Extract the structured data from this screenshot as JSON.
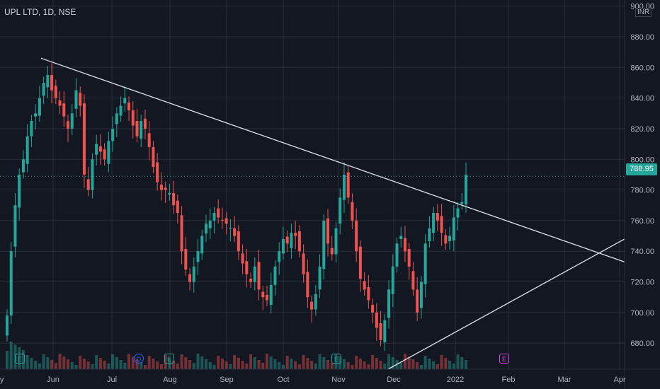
{
  "symbol": {
    "title": "UPL LTD, 1D, NSE"
  },
  "currency": "INR",
  "last_price": {
    "value": 788.95,
    "label": "788.95"
  },
  "colors": {
    "background": "#131722",
    "up": "#26a69a",
    "down": "#ef5350",
    "grid": "#2a2e39",
    "axis_text": "#b2b5be",
    "trendline": "#e0e3eb",
    "price_line": "#26a69a"
  },
  "events": [
    {
      "type": "E",
      "date": "May",
      "icon": "earnings-icon"
    },
    {
      "type": "D",
      "date": "Jul",
      "icon": "dividend-icon"
    },
    {
      "type": "E",
      "date": "Aug",
      "icon": "earnings-icon"
    },
    {
      "type": "E",
      "date": "Nov",
      "icon": "earnings-icon"
    },
    {
      "type": "E",
      "date": "Feb",
      "icon": "earnings-upcoming-icon"
    }
  ],
  "chart_data": {
    "type": "candlestick",
    "x_ticks": [
      "May",
      "Jun",
      "Jul",
      "Aug",
      "Sep",
      "Oct",
      "Nov",
      "Dec",
      "2022",
      "Feb",
      "Mar",
      "Apr"
    ],
    "y_ticks": [
      "680.00",
      "700.00",
      "720.00",
      "740.00",
      "760.00",
      "780.00",
      "800.00",
      "820.00",
      "840.00",
      "860.00",
      "880.00",
      "900.00"
    ],
    "ylim": [
      663,
      904
    ],
    "grid": true,
    "series_close": [
      [
        698,
        740,
        770,
        790,
        800,
        815,
        825,
        830,
        840,
        850,
        855,
        845,
        840,
        835,
        828,
        820,
        830,
        845,
        835,
        790,
        780,
        800,
        810,
        805,
        800,
        812,
        820,
        830,
        835,
        840,
        832,
        822,
        815,
        825,
        820,
        808,
        795,
        785,
        780,
        780,
        778,
        770,
        765,
        740,
        728,
        720,
        730,
        740,
        750,
        758,
        760,
        765,
        762,
        760,
        758,
        755,
        750,
        740,
        732,
        725,
        720,
        730,
        715,
        710,
        708,
        718,
        730,
        740,
        748,
        745,
        752,
        750,
        740,
        725,
        710,
        702,
        712,
        730,
        760,
        745,
        738,
        755,
        775,
        790,
        775,
        760,
        740,
        722,
        715,
        708,
        700,
        690,
        682,
        695,
        715,
        730,
        745,
        750,
        740,
        730,
        715,
        700,
        720,
        745,
        755,
        765,
        760,
        752,
        745,
        750,
        762,
        768,
        772,
        790
      ]
    ],
    "trendlines": [
      {
        "name": "descending resistance",
        "from": [
          "May",
          866
        ],
        "to": [
          "Apr",
          733
        ]
      },
      {
        "name": "ascending support",
        "from": [
          "Dec",
          663
        ],
        "to": [
          "Apr",
          748
        ]
      }
    ]
  }
}
